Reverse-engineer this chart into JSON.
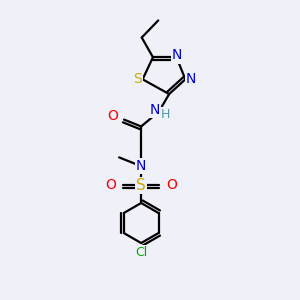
{
  "bg_color": "#f0f0f8",
  "bond_color": "#000000",
  "bond_width": 1.6,
  "colors": {
    "N": "#0000cc",
    "S": "#ccaa00",
    "O": "#ff0000",
    "Cl": "#00aa00",
    "C": "#000000",
    "H": "#5599aa"
  },
  "font_size": 10,
  "font_size_small": 9,
  "font_size_cl": 9
}
